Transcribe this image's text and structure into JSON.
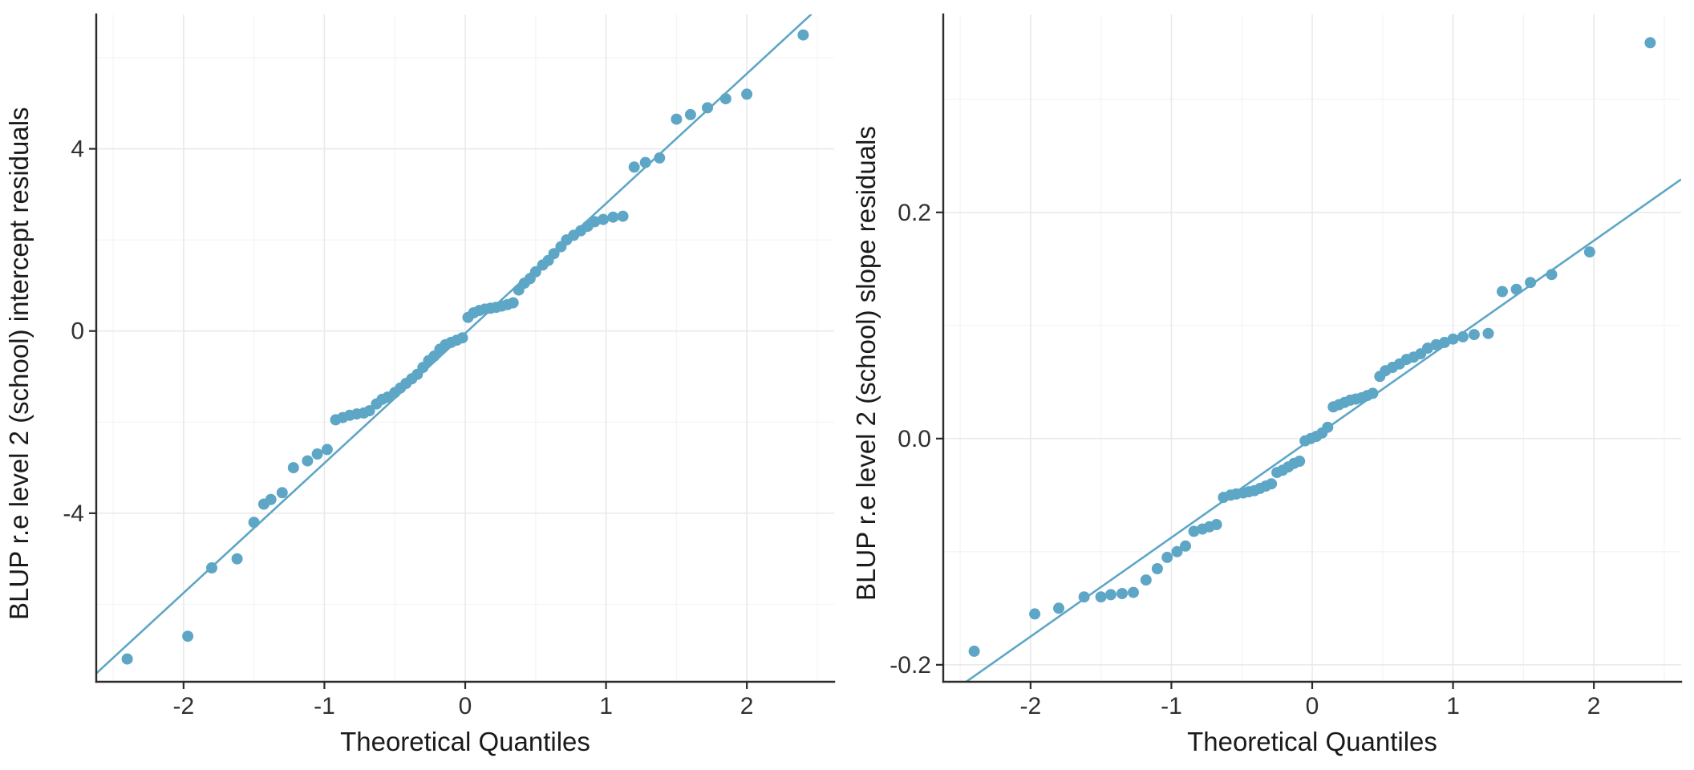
{
  "figure": {
    "background": "#ffffff",
    "axis_color": "#2b2b2b",
    "grid_major_color": "#e9e9e9",
    "grid_minor_color": "#f4f4f4"
  },
  "chart_data": [
    {
      "type": "scatter",
      "subtype": "qq_plot",
      "title": "",
      "xlabel": "Theoretical Quantiles",
      "ylabel": "BLUP r.e level 2 (school) intercept residuals",
      "xlim": [
        -2.62,
        2.62
      ],
      "ylim": [
        -7.7,
        6.95
      ],
      "xticks": [
        -2,
        -1,
        0,
        1,
        2
      ],
      "yticks": [
        -4,
        0,
        4
      ],
      "xtick_labels": [
        "-2",
        "-1",
        "0",
        "1",
        "2"
      ],
      "ytick_labels": [
        "-4",
        "0",
        "4"
      ],
      "grid": true,
      "legend": false,
      "point_color": "#5ea6c6",
      "line_color": "#5ea6c6",
      "ref_line": {
        "slope": 2.85,
        "intercept": -0.05
      },
      "points": [
        [
          -2.4,
          -7.2
        ],
        [
          -1.97,
          -6.7
        ],
        [
          -1.8,
          -5.2
        ],
        [
          -1.62,
          -5.0
        ],
        [
          -1.5,
          -4.2
        ],
        [
          -1.43,
          -3.8
        ],
        [
          -1.38,
          -3.7
        ],
        [
          -1.3,
          -3.55
        ],
        [
          -1.22,
          -3.0
        ],
        [
          -1.12,
          -2.85
        ],
        [
          -1.05,
          -2.7
        ],
        [
          -0.98,
          -2.6
        ],
        [
          -0.92,
          -1.95
        ],
        [
          -0.87,
          -1.9
        ],
        [
          -0.82,
          -1.85
        ],
        [
          -0.77,
          -1.82
        ],
        [
          -0.72,
          -1.8
        ],
        [
          -0.68,
          -1.75
        ],
        [
          -0.63,
          -1.6
        ],
        [
          -0.59,
          -1.5
        ],
        [
          -0.55,
          -1.45
        ],
        [
          -0.5,
          -1.35
        ],
        [
          -0.46,
          -1.25
        ],
        [
          -0.42,
          -1.15
        ],
        [
          -0.38,
          -1.05
        ],
        [
          -0.34,
          -0.95
        ],
        [
          -0.3,
          -0.8
        ],
        [
          -0.26,
          -0.65
        ],
        [
          -0.22,
          -0.55
        ],
        [
          -0.18,
          -0.4
        ],
        [
          -0.14,
          -0.3
        ],
        [
          -0.1,
          -0.25
        ],
        [
          -0.06,
          -0.2
        ],
        [
          -0.02,
          -0.15
        ],
        [
          0.02,
          0.3
        ],
        [
          0.06,
          0.4
        ],
        [
          0.1,
          0.45
        ],
        [
          0.14,
          0.48
        ],
        [
          0.18,
          0.5
        ],
        [
          0.22,
          0.52
        ],
        [
          0.26,
          0.55
        ],
        [
          0.3,
          0.58
        ],
        [
          0.34,
          0.62
        ],
        [
          0.38,
          0.9
        ],
        [
          0.42,
          1.05
        ],
        [
          0.46,
          1.15
        ],
        [
          0.5,
          1.3
        ],
        [
          0.55,
          1.45
        ],
        [
          0.59,
          1.55
        ],
        [
          0.63,
          1.7
        ],
        [
          0.68,
          1.85
        ],
        [
          0.72,
          2.0
        ],
        [
          0.77,
          2.1
        ],
        [
          0.82,
          2.2
        ],
        [
          0.87,
          2.3
        ],
        [
          0.92,
          2.4
        ],
        [
          0.98,
          2.45
        ],
        [
          1.05,
          2.5
        ],
        [
          1.12,
          2.52
        ],
        [
          1.2,
          3.6
        ],
        [
          1.28,
          3.7
        ],
        [
          1.38,
          3.8
        ],
        [
          1.5,
          4.65
        ],
        [
          1.6,
          4.75
        ],
        [
          1.72,
          4.9
        ],
        [
          1.85,
          5.1
        ],
        [
          2.0,
          5.2
        ],
        [
          2.4,
          6.5
        ]
      ]
    },
    {
      "type": "scatter",
      "subtype": "qq_plot",
      "title": "",
      "xlabel": "Theoretical Quantiles",
      "ylabel": "BLUP r.e level 2 (school) slope residuals",
      "xlim": [
        -2.62,
        2.62
      ],
      "ylim": [
        -0.215,
        0.375
      ],
      "xticks": [
        -2,
        -1,
        0,
        1,
        2
      ],
      "yticks": [
        -0.2,
        0.0,
        0.2
      ],
      "xtick_labels": [
        "-2",
        "-1",
        "0",
        "1",
        "2"
      ],
      "ytick_labels": [
        "-0.2",
        "0.0",
        "0.2"
      ],
      "grid": true,
      "legend": false,
      "point_color": "#5ea6c6",
      "line_color": "#5ea6c6",
      "ref_line": {
        "slope": 0.0875,
        "intercept": 0.0
      },
      "points": [
        [
          -2.4,
          -0.188
        ],
        [
          -1.97,
          -0.155
        ],
        [
          -1.8,
          -0.15
        ],
        [
          -1.62,
          -0.14
        ],
        [
          -1.5,
          -0.14
        ],
        [
          -1.43,
          -0.138
        ],
        [
          -1.35,
          -0.137
        ],
        [
          -1.27,
          -0.136
        ],
        [
          -1.18,
          -0.125
        ],
        [
          -1.1,
          -0.115
        ],
        [
          -1.03,
          -0.105
        ],
        [
          -0.96,
          -0.1
        ],
        [
          -0.9,
          -0.095
        ],
        [
          -0.84,
          -0.082
        ],
        [
          -0.78,
          -0.08
        ],
        [
          -0.73,
          -0.078
        ],
        [
          -0.68,
          -0.076
        ],
        [
          -0.63,
          -0.052
        ],
        [
          -0.58,
          -0.05
        ],
        [
          -0.54,
          -0.049
        ],
        [
          -0.49,
          -0.048
        ],
        [
          -0.45,
          -0.047
        ],
        [
          -0.41,
          -0.046
        ],
        [
          -0.37,
          -0.044
        ],
        [
          -0.33,
          -0.042
        ],
        [
          -0.29,
          -0.04
        ],
        [
          -0.25,
          -0.03
        ],
        [
          -0.21,
          -0.028
        ],
        [
          -0.17,
          -0.025
        ],
        [
          -0.13,
          -0.022
        ],
        [
          -0.09,
          -0.02
        ],
        [
          -0.05,
          -0.002
        ],
        [
          -0.01,
          0.0
        ],
        [
          0.03,
          0.002
        ],
        [
          0.07,
          0.005
        ],
        [
          0.11,
          0.01
        ],
        [
          0.15,
          0.028
        ],
        [
          0.19,
          0.03
        ],
        [
          0.23,
          0.032
        ],
        [
          0.27,
          0.034
        ],
        [
          0.31,
          0.035
        ],
        [
          0.35,
          0.036
        ],
        [
          0.39,
          0.038
        ],
        [
          0.43,
          0.04
        ],
        [
          0.48,
          0.055
        ],
        [
          0.52,
          0.06
        ],
        [
          0.57,
          0.063
        ],
        [
          0.62,
          0.066
        ],
        [
          0.67,
          0.07
        ],
        [
          0.72,
          0.072
        ],
        [
          0.77,
          0.075
        ],
        [
          0.82,
          0.08
        ],
        [
          0.88,
          0.083
        ],
        [
          0.94,
          0.085
        ],
        [
          1.0,
          0.088
        ],
        [
          1.07,
          0.09
        ],
        [
          1.15,
          0.092
        ],
        [
          1.25,
          0.093
        ],
        [
          1.35,
          0.13
        ],
        [
          1.45,
          0.132
        ],
        [
          1.55,
          0.138
        ],
        [
          1.7,
          0.145
        ],
        [
          1.97,
          0.165
        ],
        [
          2.4,
          0.35
        ]
      ]
    }
  ]
}
